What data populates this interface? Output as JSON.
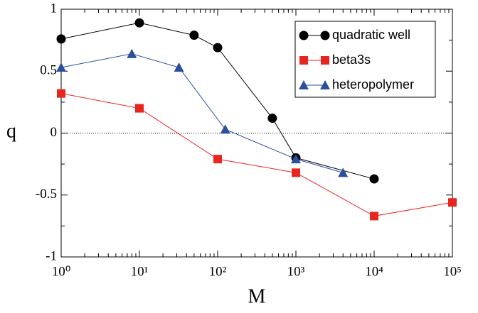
{
  "chart_data": {
    "type": "line",
    "x_label": "M",
    "y_label": "q",
    "xscale": "log",
    "xlim": [
      1,
      100000
    ],
    "xticks": [
      {
        "value": 1,
        "label": "10⁰"
      },
      {
        "value": 10,
        "label": "10¹"
      },
      {
        "value": 100,
        "label": "10²"
      },
      {
        "value": 1000,
        "label": "10³"
      },
      {
        "value": 10000,
        "label": "10⁴"
      },
      {
        "value": 100000,
        "label": "10⁵"
      }
    ],
    "ylim": [
      -1,
      1
    ],
    "yticks": [
      -1,
      -0.5,
      0,
      0.5,
      1
    ],
    "reference_line": 0,
    "grid": false,
    "legend_position": "upper right",
    "series": [
      {
        "name": "quadratic well",
        "color": "#000000",
        "marker": "circle",
        "x": [
          1,
          10,
          50,
          100,
          500,
          1000,
          10000
        ],
        "values": [
          0.76,
          0.89,
          0.79,
          0.69,
          0.12,
          -0.2,
          -0.37
        ]
      },
      {
        "name": "beta3s",
        "color": "#e8251f",
        "marker": "square",
        "x": [
          1,
          10,
          100,
          1000,
          10000,
          100000
        ],
        "values": [
          0.32,
          0.2,
          -0.21,
          -0.32,
          -0.67,
          -0.56
        ]
      },
      {
        "name": "heteropolymer",
        "color": "#2b4f9e",
        "marker": "triangle",
        "x": [
          1,
          8,
          32,
          125,
          1000,
          4000
        ],
        "values": [
          0.53,
          0.64,
          0.53,
          0.03,
          -0.21,
          -0.32
        ]
      }
    ]
  }
}
